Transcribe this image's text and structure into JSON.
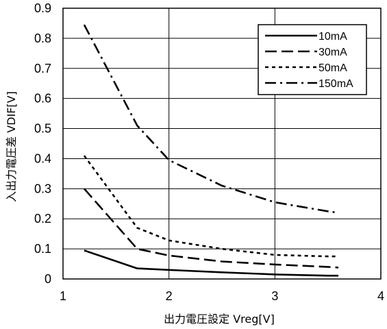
{
  "chart_data": {
    "type": "line",
    "xlabel": "出力電圧設定 Vreg[V]",
    "ylabel": "入出力電圧差 VDIF[V]",
    "xlim": [
      1,
      4
    ],
    "ylim": [
      0,
      0.9
    ],
    "xticks": [
      "1",
      "2",
      "3",
      "4"
    ],
    "yticks": [
      "0",
      "0.1",
      "0.2",
      "0.3",
      "0.4",
      "0.5",
      "0.6",
      "0.7",
      "0.8",
      "0.9"
    ],
    "grid": true,
    "legend_position": "top-right",
    "series": [
      {
        "name": "10mA",
        "style": "solid",
        "x": [
          1.2,
          1.7,
          2.0,
          2.5,
          3.0,
          3.5,
          3.6
        ],
        "y": [
          0.095,
          0.035,
          0.03,
          0.022,
          0.015,
          0.011,
          0.011
        ]
      },
      {
        "name": "30mA",
        "style": "dashed",
        "x": [
          1.2,
          1.7,
          2.0,
          2.5,
          3.0,
          3.5,
          3.6
        ],
        "y": [
          0.3,
          0.1,
          0.078,
          0.058,
          0.048,
          0.04,
          0.038
        ]
      },
      {
        "name": "50mA",
        "style": "dotted",
        "x": [
          1.2,
          1.7,
          2.0,
          2.5,
          3.0,
          3.5,
          3.6
        ],
        "y": [
          0.41,
          0.17,
          0.128,
          0.1,
          0.08,
          0.075,
          0.075
        ]
      },
      {
        "name": "150mA",
        "style": "dashdot",
        "x": [
          1.2,
          1.7,
          2.0,
          2.5,
          3.0,
          3.5,
          3.6
        ],
        "y": [
          0.845,
          0.51,
          0.395,
          0.31,
          0.255,
          0.225,
          0.22
        ]
      }
    ]
  }
}
